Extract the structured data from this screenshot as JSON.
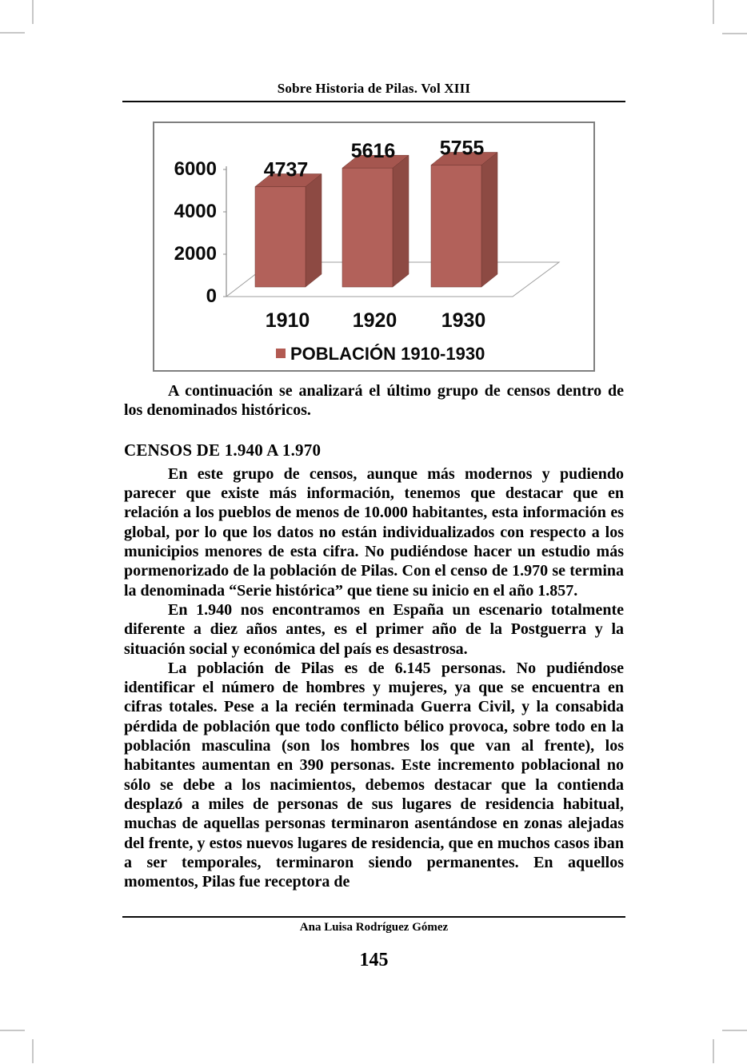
{
  "page": {
    "header_title": "Sobre Historia de Pilas. Vol XIII",
    "footer_author": "Ana Luisa Rodríguez Gómez",
    "page_number": "145"
  },
  "chart_data": {
    "type": "bar",
    "style": "3d-column",
    "categories": [
      "1910",
      "1920",
      "1930"
    ],
    "values": [
      4737,
      5616,
      5755
    ],
    "data_labels": [
      "4737",
      "5616",
      "5755"
    ],
    "legend": "POBLACIÓN 1910-1930",
    "legend_position": "bottom-center",
    "y_ticks": [
      0,
      2000,
      4000,
      6000
    ],
    "ylim": [
      0,
      6000
    ],
    "grid": false,
    "colors": {
      "bar_front": "#b2615a",
      "bar_side": "#8d4a43",
      "bar_top": "#a5564f",
      "legend_marker": "#b25a52",
      "axis": "#8c8c8c",
      "floor": "#9e9e9e",
      "text": "#0a0a0a"
    }
  },
  "body": {
    "paragraph_1": "A continuación se analizará el último grupo de censos dentro de los denominados históricos.",
    "section_heading": "CENSOS DE 1.940 A 1.970",
    "paragraph_2": "En este grupo de censos, aunque más modernos y pudiendo parecer que existe más información, tenemos que destacar que en relación a los pueblos de menos de 10.000 habitantes, esta información es global, por lo que los datos no están individualizados con respecto a los municipios menores de esta cifra. No pudiéndose hacer un estudio más pormenorizado de la población de Pilas. Con el censo de 1.970 se termina la denominada “Serie histórica” que tiene su inicio  en  el año 1.857.",
    "paragraph_3": "En 1.940 nos encontramos en España un escenario totalmente diferente a diez años antes, es el primer año de la Postguerra y  la situación social y económica del país es desastrosa.",
    "paragraph_4": "La población de Pilas es de 6.145 personas. No pudiéndose identificar el número de hombres y mujeres, ya que se encuentra en cifras totales. Pese a la recién terminada Guerra Civil, y la consabida pérdida de población que todo conflicto bélico provoca, sobre todo en la población masculina (son los hombres los que van al frente),  los habitantes aumentan en 390 personas. Este incremento poblacional no sólo se debe a los nacimientos, debemos destacar que la contienda desplazó a miles de personas de sus lugares de residencia habitual, muchas de aquellas personas terminaron asentándose en  zonas alejadas del frente, y estos nuevos lugares de residencia, que en muchos casos iban a ser temporales, terminaron siendo permanentes. En aquellos momentos, Pilas fue receptora de"
  }
}
